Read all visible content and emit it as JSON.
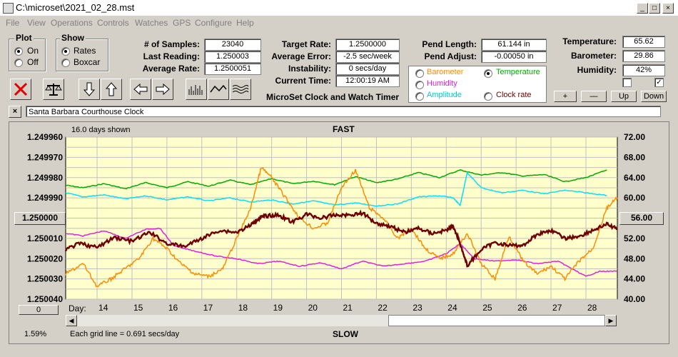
{
  "window": {
    "title": "C:\\microset\\2021_02_28.mst",
    "btn_min": "_",
    "btn_max": "□",
    "btn_close": "×"
  },
  "menu": [
    "File",
    "View",
    "Operations",
    "Controls",
    "Watches",
    "GPS",
    "Configure",
    "Help"
  ],
  "plot_group": {
    "label": "Plot",
    "on": "On",
    "off": "Off"
  },
  "show_group": {
    "label": "Show",
    "rates": "Rates",
    "boxcar": "Boxcar"
  },
  "stats": {
    "samples_label": "# of Samples:",
    "samples": "23040",
    "last_label": "Last Reading:",
    "last": "1.250003",
    "avg_label": "Average Rate:",
    "avg": "1.2500051",
    "target_label": "Target Rate:",
    "target": "1.2500000",
    "avgerr_label": "Average Error:",
    "avgerr": "-2.5 sec/week",
    "instab_label": "Instability:",
    "instab": "0 secs/day",
    "time_label": "Current Time:",
    "time": "12:00:19 AM",
    "pendlen_label": "Pend Length:",
    "pendlen": "61.144 in",
    "pendadj_label": "Pend Adjust:",
    "pendadj": "-0.00050 in",
    "temp_label": "Temperature:",
    "temp": "65.62",
    "baro_label": "Barometer:",
    "baro": "29.86",
    "hum_label": "Humidity:",
    "hum": "42%"
  },
  "app_caption": "MicroSet Clock and Watch Timer",
  "sensors": {
    "barometer": "Barometer",
    "temperature": "Temperature",
    "humidity": "Humidity",
    "amplitude": "Amplitude",
    "clockrate": "Clock rate"
  },
  "buttons": {
    "plus": "+",
    "minus": "—",
    "up": "Up",
    "down": "Down",
    "close_x": "×"
  },
  "clock_name": "Santa Barbara Courthouse Clock",
  "chart_top": {
    "days_shown": "16.0 days shown",
    "fast": "FAST"
  },
  "chart_bottom": {
    "grid_note": "Each grid line = 0.691 secs/day",
    "slow": "SLOW",
    "percent": "1.59%",
    "day_label": "Day:",
    "left_btn": "0",
    "right_btn": "56.00",
    "left_mid_btn": "1.250000"
  },
  "colors": {
    "chart_bg": "#ffffcc",
    "grid": "#c0c0c0",
    "temperature": "#00aa00",
    "humidity": "#e020e0",
    "barometer": "#ff8c00",
    "amplitude": "#00e0ff",
    "rate": "#700000"
  },
  "chart_data": {
    "type": "line",
    "x_label": "Day:",
    "x_ticks": [
      14,
      15,
      16,
      17,
      18,
      19,
      20,
      21,
      22,
      23,
      24,
      25,
      26,
      27,
      28
    ],
    "xlim": [
      13.1,
      28.9
    ],
    "y_left_ticks": [
      "1.249960",
      "1.249970",
      "1.249980",
      "1.249990",
      "1.250000",
      "1.250010",
      "1.250020",
      "1.250030",
      "1.250040"
    ],
    "y_right_ticks": [
      "72.00",
      "68.00",
      "64.00",
      "60.00",
      "56.00",
      "52.00",
      "48.00",
      "44.00",
      "40.00"
    ],
    "y_right_range": [
      40,
      72
    ],
    "series": [
      {
        "name": "Temperature",
        "color_key": "temperature",
        "x": [
          13.1,
          13.6,
          14.2,
          14.8,
          15.4,
          16.0,
          16.6,
          17.2,
          17.8,
          18.4,
          19.0,
          19.6,
          20.2,
          20.8,
          21.4,
          22.0,
          22.6,
          23.2,
          23.8,
          24.4,
          25.0,
          25.6,
          26.2,
          26.8,
          27.4,
          28.0,
          28.6
        ],
        "y": [
          62.5,
          62.0,
          62.8,
          61.8,
          63.0,
          62.0,
          63.2,
          62.3,
          63.5,
          62.6,
          63.8,
          62.8,
          63.3,
          62.6,
          64.2,
          63.0,
          63.7,
          65.0,
          64.0,
          65.5,
          64.5,
          65.0,
          64.3,
          64.6,
          63.2,
          64.0,
          65.5
        ]
      },
      {
        "name": "Amplitude",
        "color_key": "amplitude",
        "x": [
          13.1,
          13.6,
          14.2,
          14.8,
          15.4,
          16.0,
          16.6,
          17.2,
          17.8,
          18.4,
          19.0,
          19.6,
          20.2,
          20.8,
          21.4,
          22.0,
          22.6,
          23.2,
          23.8,
          24.2,
          24.4,
          24.6,
          25.0,
          25.6,
          26.2,
          26.8,
          27.4,
          28.0,
          28.6
        ],
        "y": [
          61.0,
          60.2,
          60.6,
          59.8,
          60.4,
          59.6,
          60.2,
          59.4,
          60.0,
          59.2,
          59.6,
          58.8,
          59.4,
          58.6,
          59.0,
          58.4,
          58.8,
          60.2,
          60.4,
          60.0,
          58.5,
          65.0,
          62.0,
          61.0,
          61.5,
          60.8,
          61.5,
          61.0,
          60.5
        ]
      },
      {
        "name": "Humidity",
        "color_key": "humidity",
        "x": [
          13.1,
          13.6,
          14.2,
          14.8,
          15.4,
          15.8,
          16.2,
          16.8,
          17.4,
          18.0,
          18.6,
          19.2,
          19.8,
          20.4,
          21.0,
          21.6,
          22.2,
          22.8,
          23.4,
          24.0,
          24.4,
          24.8,
          25.4,
          26.0,
          26.6,
          27.2,
          27.6,
          28.0,
          28.4,
          28.9
        ],
        "y": [
          53.0,
          52.5,
          53.5,
          52.0,
          53.8,
          54.0,
          50.5,
          49.5,
          48.5,
          48.0,
          47.0,
          47.5,
          46.5,
          47.2,
          46.0,
          47.5,
          46.5,
          47.0,
          47.5,
          49.0,
          51.0,
          48.0,
          47.5,
          47.8,
          47.0,
          47.5,
          46.0,
          44.5,
          45.5,
          45.5
        ]
      },
      {
        "name": "Barometer",
        "color_key": "barometer",
        "x": [
          13.1,
          13.6,
          14.0,
          14.4,
          14.8,
          15.2,
          15.6,
          16.0,
          16.4,
          16.8,
          17.2,
          17.6,
          18.0,
          18.4,
          18.7,
          19.0,
          19.4,
          19.8,
          20.2,
          20.6,
          21.0,
          21.4,
          21.8,
          22.2,
          22.6,
          23.0,
          23.4,
          23.8,
          24.2,
          24.6,
          25.0,
          25.4,
          25.8,
          26.2,
          26.6,
          27.0,
          27.4,
          27.8,
          28.2,
          28.6,
          28.9
        ],
        "y": [
          45.0,
          47.0,
          42.5,
          44.0,
          46.0,
          48.0,
          52.0,
          50.0,
          47.0,
          45.0,
          44.5,
          46.0,
          52.0,
          58.0,
          66.0,
          64.0,
          60.0,
          56.0,
          54.0,
          55.0,
          62.0,
          65.5,
          58.0,
          56.0,
          52.0,
          54.0,
          50.0,
          48.0,
          49.0,
          53.0,
          47.0,
          44.0,
          52.5,
          47.5,
          45.0,
          46.5,
          44.0,
          47.5,
          50.0,
          58.0,
          60.0
        ]
      },
      {
        "name": "Clock rate",
        "color_key": "rate",
        "x": [
          13.1,
          13.5,
          14.0,
          14.5,
          15.0,
          15.5,
          16.0,
          16.5,
          17.0,
          17.5,
          18.0,
          18.4,
          18.6,
          18.8,
          19.2,
          19.6,
          20.0,
          20.4,
          20.8,
          21.2,
          21.6,
          22.0,
          22.4,
          22.8,
          23.2,
          23.6,
          24.0,
          24.2,
          24.4,
          24.6,
          25.0,
          25.4,
          25.8,
          26.2,
          26.6,
          27.0,
          27.4,
          27.8,
          28.2,
          28.6,
          28.9
        ],
        "y": [
          1.2500155,
          1.2500125,
          1.2500145,
          1.2500095,
          1.2500115,
          1.250007,
          1.2500125,
          1.250014,
          1.25001,
          1.250006,
          1.250007,
          1.2500035,
          1.2500005,
          1.249999,
          1.2499985,
          1.250002,
          1.249998,
          1.25,
          1.2499985,
          1.2499985,
          1.2499975,
          1.2500025,
          1.250004,
          1.250007,
          1.250005,
          1.2500075,
          1.250006,
          1.250004,
          1.2500125,
          1.2500235,
          1.2500155,
          1.250012,
          1.2500135,
          1.2500135,
          1.250008,
          1.250006,
          1.25001,
          1.250009,
          1.250006,
          1.250003,
          1.2500055
        ]
      }
    ]
  }
}
